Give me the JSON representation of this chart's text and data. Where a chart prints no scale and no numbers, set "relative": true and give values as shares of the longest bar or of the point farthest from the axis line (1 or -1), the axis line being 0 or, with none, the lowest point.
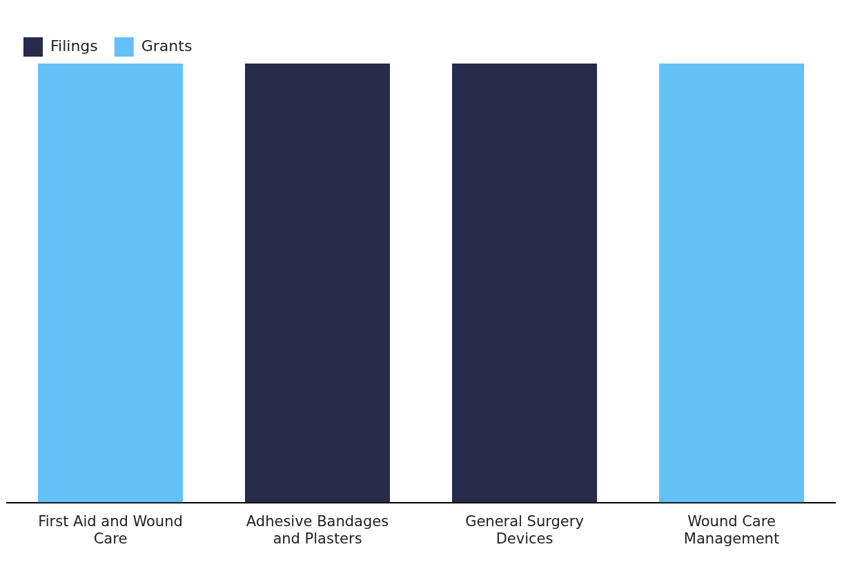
{
  "chart_data": {
    "type": "bar",
    "relative": true,
    "stacked": true,
    "legend": "top left",
    "grid": false,
    "categories": [
      "First Aid and Wound Care",
      "Adhesive Bandages and Plasters",
      "General Surgery Devices",
      "Wound Care Management"
    ],
    "series": [
      {
        "name": "Filings",
        "color": "#272a4b",
        "values": [
          null,
          1,
          1,
          null
        ]
      },
      {
        "name": "Grants",
        "color": "#63c1f8",
        "values": [
          1,
          null,
          null,
          1
        ]
      }
    ]
  }
}
